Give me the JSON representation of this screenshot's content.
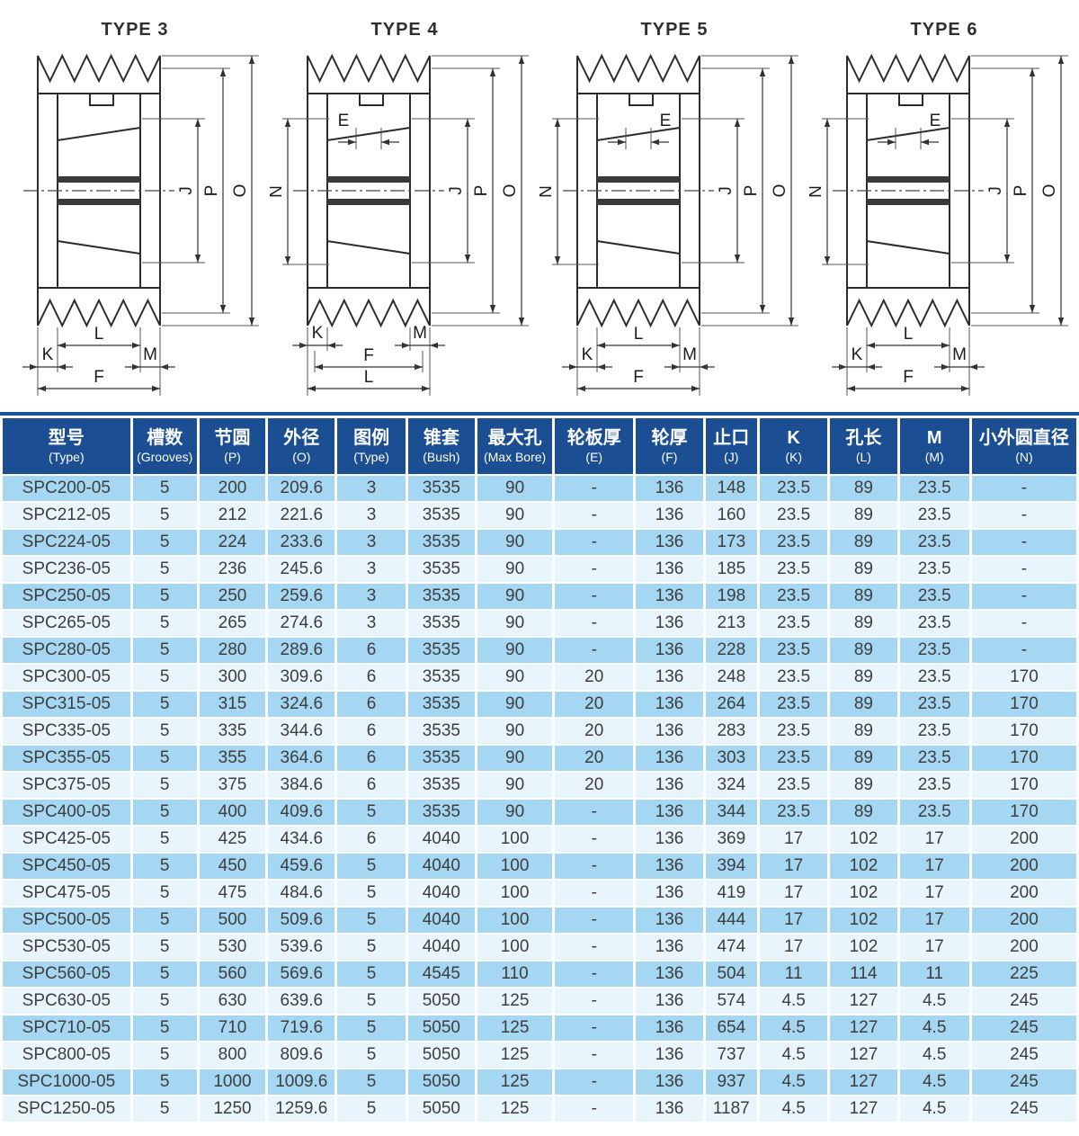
{
  "colors": {
    "header_bg": "#1b4e92",
    "topbar": "#1e55a0",
    "row_odd": "#a6d7f2",
    "row_even": "#e9f5fd",
    "cell_text": "#3d3d3d",
    "header_text": "#ffffff"
  },
  "diagrams": [
    {
      "title": "TYPE 3",
      "labels": {
        "j": "J",
        "p": "P",
        "o": "O",
        "l": "L",
        "k": "K",
        "m": "M",
        "f": "F"
      }
    },
    {
      "title": "TYPE 4",
      "labels": {
        "e": "E",
        "n": "N",
        "j": "J",
        "p": "P",
        "o": "O",
        "k": "K",
        "m": "M",
        "f": "F",
        "l": "L"
      }
    },
    {
      "title": "TYPE 5",
      "labels": {
        "e": "E",
        "n": "N",
        "j": "J",
        "p": "P",
        "o": "O",
        "l": "L",
        "k": "K",
        "m": "M",
        "f": "F"
      }
    },
    {
      "title": "TYPE 6",
      "labels": {
        "e": "E",
        "n": "N",
        "j": "J",
        "p": "P",
        "o": "O",
        "l": "L",
        "k": "K",
        "m": "M",
        "f": "F"
      }
    }
  ],
  "table": {
    "columns": [
      {
        "zh": "型号",
        "en": "(Type)"
      },
      {
        "zh": "槽数",
        "en": "(Grooves)"
      },
      {
        "zh": "节圆",
        "en": "(P)"
      },
      {
        "zh": "外径",
        "en": "(O)"
      },
      {
        "zh": "图例",
        "en": "(Type)"
      },
      {
        "zh": "锥套",
        "en": "(Bush)"
      },
      {
        "zh": "最大孔",
        "en": "(Max Bore)"
      },
      {
        "zh": "轮板厚",
        "en": "(E)"
      },
      {
        "zh": "轮厚",
        "en": "(F)"
      },
      {
        "zh": "止口",
        "en": "(J)"
      },
      {
        "zh": "K",
        "en": "(K)"
      },
      {
        "zh": "孔长",
        "en": "(L)"
      },
      {
        "zh": "M",
        "en": "(M)"
      },
      {
        "zh": "小外圆直径",
        "en": "(N)"
      }
    ],
    "rows": [
      [
        "SPC200-05",
        "5",
        "200",
        "209.6",
        "3",
        "3535",
        "90",
        "-",
        "136",
        "148",
        "23.5",
        "89",
        "23.5",
        "-"
      ],
      [
        "SPC212-05",
        "5",
        "212",
        "221.6",
        "3",
        "3535",
        "90",
        "-",
        "136",
        "160",
        "23.5",
        "89",
        "23.5",
        "-"
      ],
      [
        "SPC224-05",
        "5",
        "224",
        "233.6",
        "3",
        "3535",
        "90",
        "-",
        "136",
        "173",
        "23.5",
        "89",
        "23.5",
        "-"
      ],
      [
        "SPC236-05",
        "5",
        "236",
        "245.6",
        "3",
        "3535",
        "90",
        "-",
        "136",
        "185",
        "23.5",
        "89",
        "23.5",
        "-"
      ],
      [
        "SPC250-05",
        "5",
        "250",
        "259.6",
        "3",
        "3535",
        "90",
        "-",
        "136",
        "198",
        "23.5",
        "89",
        "23.5",
        "-"
      ],
      [
        "SPC265-05",
        "5",
        "265",
        "274.6",
        "3",
        "3535",
        "90",
        "-",
        "136",
        "213",
        "23.5",
        "89",
        "23.5",
        "-"
      ],
      [
        "SPC280-05",
        "5",
        "280",
        "289.6",
        "6",
        "3535",
        "90",
        "-",
        "136",
        "228",
        "23.5",
        "89",
        "23.5",
        "-"
      ],
      [
        "SPC300-05",
        "5",
        "300",
        "309.6",
        "6",
        "3535",
        "90",
        "20",
        "136",
        "248",
        "23.5",
        "89",
        "23.5",
        "170"
      ],
      [
        "SPC315-05",
        "5",
        "315",
        "324.6",
        "6",
        "3535",
        "90",
        "20",
        "136",
        "264",
        "23.5",
        "89",
        "23.5",
        "170"
      ],
      [
        "SPC335-05",
        "5",
        "335",
        "344.6",
        "6",
        "3535",
        "90",
        "20",
        "136",
        "283",
        "23.5",
        "89",
        "23.5",
        "170"
      ],
      [
        "SPC355-05",
        "5",
        "355",
        "364.6",
        "6",
        "3535",
        "90",
        "20",
        "136",
        "303",
        "23.5",
        "89",
        "23.5",
        "170"
      ],
      [
        "SPC375-05",
        "5",
        "375",
        "384.6",
        "6",
        "3535",
        "90",
        "20",
        "136",
        "324",
        "23.5",
        "89",
        "23.5",
        "170"
      ],
      [
        "SPC400-05",
        "5",
        "400",
        "409.6",
        "5",
        "3535",
        "90",
        "-",
        "136",
        "344",
        "23.5",
        "89",
        "23.5",
        "170"
      ],
      [
        "SPC425-05",
        "5",
        "425",
        "434.6",
        "6",
        "4040",
        "100",
        "-",
        "136",
        "369",
        "17",
        "102",
        "17",
        "200"
      ],
      [
        "SPC450-05",
        "5",
        "450",
        "459.6",
        "5",
        "4040",
        "100",
        "-",
        "136",
        "394",
        "17",
        "102",
        "17",
        "200"
      ],
      [
        "SPC475-05",
        "5",
        "475",
        "484.6",
        "5",
        "4040",
        "100",
        "-",
        "136",
        "419",
        "17",
        "102",
        "17",
        "200"
      ],
      [
        "SPC500-05",
        "5",
        "500",
        "509.6",
        "5",
        "4040",
        "100",
        "-",
        "136",
        "444",
        "17",
        "102",
        "17",
        "200"
      ],
      [
        "SPC530-05",
        "5",
        "530",
        "539.6",
        "5",
        "4040",
        "100",
        "-",
        "136",
        "474",
        "17",
        "102",
        "17",
        "200"
      ],
      [
        "SPC560-05",
        "5",
        "560",
        "569.6",
        "5",
        "4545",
        "110",
        "-",
        "136",
        "504",
        "11",
        "114",
        "11",
        "225"
      ],
      [
        "SPC630-05",
        "5",
        "630",
        "639.6",
        "5",
        "5050",
        "125",
        "-",
        "136",
        "574",
        "4.5",
        "127",
        "4.5",
        "245"
      ],
      [
        "SPC710-05",
        "5",
        "710",
        "719.6",
        "5",
        "5050",
        "125",
        "-",
        "136",
        "654",
        "4.5",
        "127",
        "4.5",
        "245"
      ],
      [
        "SPC800-05",
        "5",
        "800",
        "809.6",
        "5",
        "5050",
        "125",
        "-",
        "136",
        "737",
        "4.5",
        "127",
        "4.5",
        "245"
      ],
      [
        "SPC1000-05",
        "5",
        "1000",
        "1009.6",
        "5",
        "5050",
        "125",
        "-",
        "136",
        "937",
        "4.5",
        "127",
        "4.5",
        "245"
      ],
      [
        "SPC1250-05",
        "5",
        "1250",
        "1259.6",
        "5",
        "5050",
        "125",
        "-",
        "136",
        "1187",
        "4.5",
        "127",
        "4.5",
        "245"
      ]
    ]
  }
}
